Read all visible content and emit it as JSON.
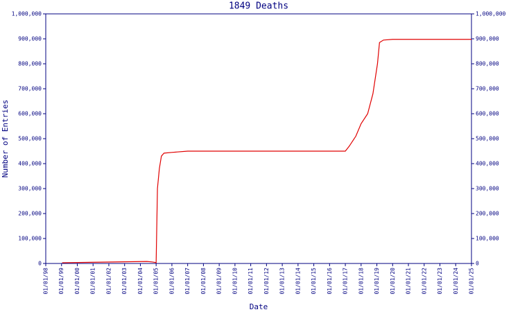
{
  "chart_data": {
    "type": "line",
    "title": "1849 Deaths",
    "x_label": "Date",
    "y_label": "Number of Entries",
    "x": [
      "01/15/99",
      "06/01/04",
      "10/01/04",
      "12/15/04",
      "01/01/05",
      "02/01/05",
      "03/15/05",
      "05/01/05",
      "07/01/05",
      "01/01/06",
      "01/01/07",
      "01/01/17",
      "04/01/17",
      "09/01/17",
      "01/01/18",
      "06/01/18",
      "10/01/18",
      "01/15/19",
      "03/01/19",
      "06/01/19",
      "01/01/20",
      "01/01/25"
    ],
    "series": [
      {
        "name": "Entries",
        "color": "#e00000",
        "values": [
          3000,
          8000,
          6000,
          4000,
          3000,
          300000,
          380000,
          430000,
          442000,
          445000,
          450000,
          450000,
          470000,
          510000,
          560000,
          600000,
          680000,
          800000,
          885000,
          895000,
          898000,
          898000
        ]
      }
    ],
    "xlim": [
      "01/01/98",
      "01/01/25"
    ],
    "xticks": [
      "01/01/98",
      "01/01/99",
      "01/01/00",
      "01/01/01",
      "01/01/02",
      "01/01/03",
      "01/01/04",
      "01/01/05",
      "01/01/06",
      "01/01/07",
      "01/01/08",
      "01/01/09",
      "01/01/10",
      "01/01/11",
      "01/01/12",
      "01/01/13",
      "01/01/14",
      "01/01/15",
      "01/01/16",
      "01/01/17",
      "01/01/18",
      "01/01/19",
      "01/01/20",
      "01/01/21",
      "01/01/22",
      "01/01/23",
      "01/01/24",
      "01/01/25"
    ],
    "ylim": [
      0,
      1000000
    ],
    "yticks": [
      0,
      {
        "value": 100000,
        "label": "100,000"
      },
      {
        "value": 200000,
        "label": "200,000"
      },
      {
        "value": 300000,
        "label": "300,000"
      },
      {
        "value": 400000,
        "label": "400,000"
      },
      {
        "value": 500000,
        "label": "500,000"
      },
      {
        "value": 600000,
        "label": "600,000"
      },
      {
        "value": 700000,
        "label": "700,000"
      },
      {
        "value": 800000,
        "label": "800,000"
      },
      {
        "value": 900000,
        "label": "900,000"
      },
      {
        "value": 1000000,
        "label": "1,000,000"
      }
    ]
  }
}
